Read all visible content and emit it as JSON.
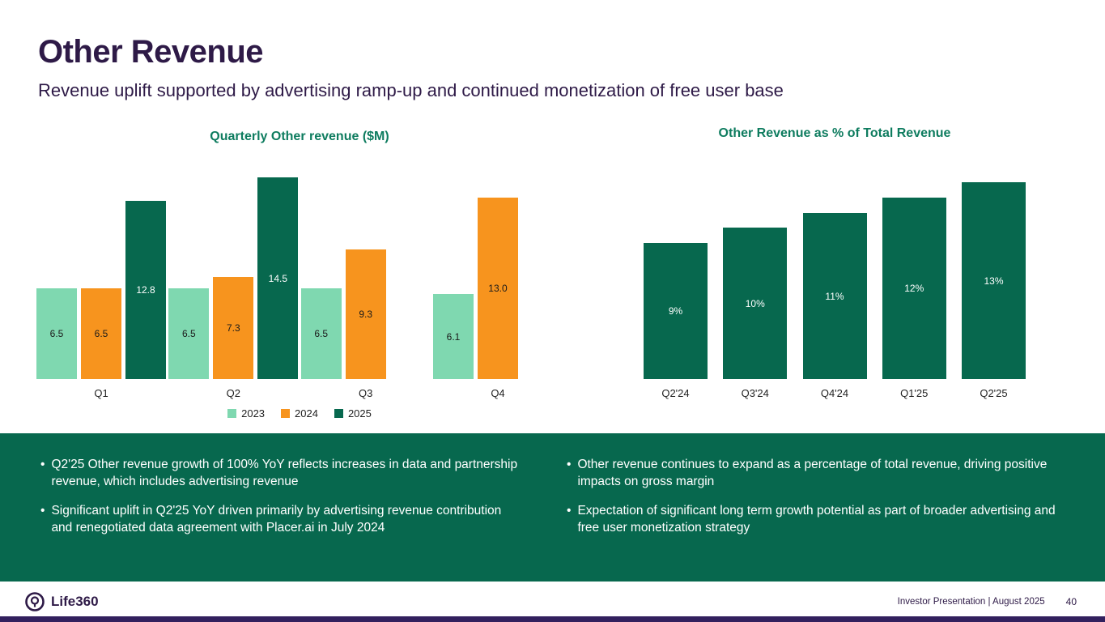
{
  "slide": {
    "title": "Other Revenue",
    "subtitle": "Revenue uplift supported by advertising ramp-up and continued monetization of free user base"
  },
  "chart_data": [
    {
      "type": "bar",
      "title": "Quarterly Other revenue ($M)",
      "categories": [
        "Q1",
        "Q2",
        "Q3",
        "Q4"
      ],
      "series": [
        {
          "name": "2023",
          "color": "#7fd8b0",
          "label_color": "#1a1a1a",
          "values": [
            6.5,
            6.5,
            6.5,
            6.1
          ],
          "labels": [
            "6.5",
            "6.5",
            "6.5",
            "6.1"
          ]
        },
        {
          "name": "2024",
          "color": "#f7941e",
          "label_color": "#1a1a1a",
          "values": [
            6.5,
            7.3,
            9.3,
            13.0
          ],
          "labels": [
            "6.5",
            "7.3",
            "9.3",
            "13.0"
          ]
        },
        {
          "name": "2025",
          "color": "#07684e",
          "label_color": "#ffffff",
          "values": [
            12.8,
            14.5,
            null,
            null
          ],
          "labels": [
            "12.8",
            "14.5",
            null,
            null
          ]
        }
      ],
      "ylim": [
        0,
        15
      ],
      "grid": false,
      "legend": true,
      "legend_position": "bottom"
    },
    {
      "type": "bar",
      "title": "Other Revenue as % of Total Revenue",
      "categories": [
        "Q2'24",
        "Q3'24",
        "Q4'24",
        "Q1'25",
        "Q2'25"
      ],
      "series": [
        {
          "name": "Other Revenue %",
          "color": "#07684e",
          "label_color": "#ffffff",
          "values": [
            9,
            10,
            11,
            12,
            13
          ],
          "labels": [
            "9%",
            "10%",
            "11%",
            "12%",
            "13%"
          ]
        }
      ],
      "ylim": [
        0,
        13.5
      ],
      "grid": false,
      "legend": false
    }
  ],
  "notes": {
    "left": [
      "Q2'25 Other revenue growth of 100% YoY reflects increases in data and partnership revenue, which includes advertising revenue",
      "Significant uplift in Q2'25 YoY driven primarily by advertising revenue contribution and renegotiated data agreement with Placer.ai in July 2024"
    ],
    "right": [
      "Other revenue continues to expand as a percentage of total revenue, driving positive impacts on gross margin",
      "Expectation of significant long term growth potential as part of broader advertising and free user monetization strategy"
    ]
  },
  "footer": {
    "brand": "Life360",
    "caption": "Investor Presentation | August 2025",
    "page": "40"
  },
  "colors": {
    "brand_purple": "#2e1a47",
    "teal_title": "#0e7c5f",
    "dark_green": "#07684e",
    "mint": "#7fd8b0",
    "orange": "#f7941e"
  }
}
